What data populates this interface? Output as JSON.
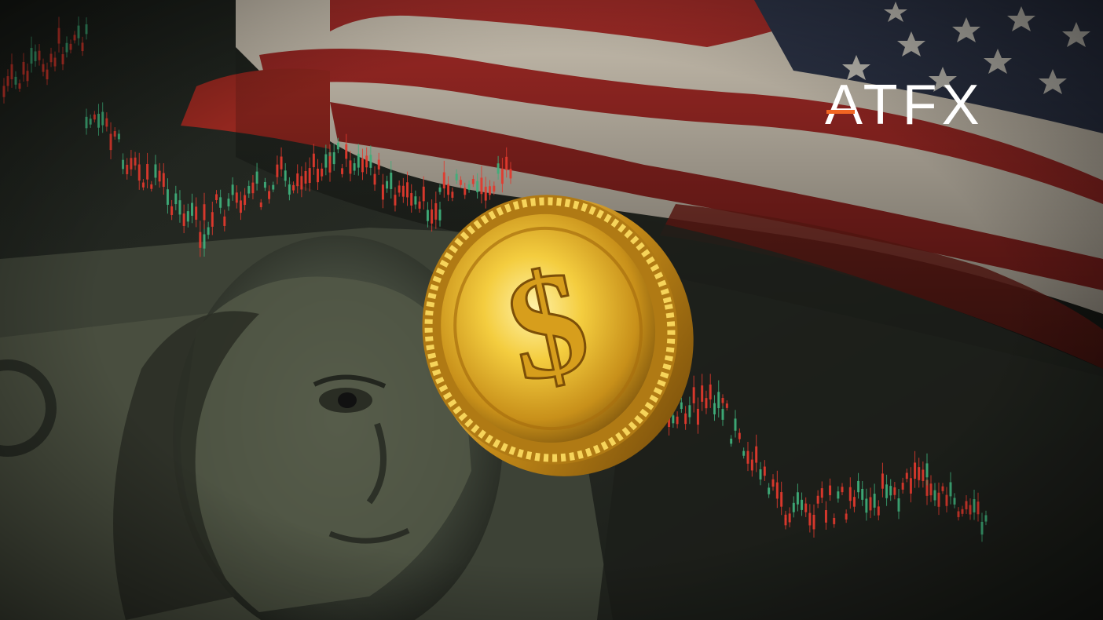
{
  "brand": {
    "logo_text": "ATFX",
    "accent_color": "#f26522",
    "text_color": "#ffffff"
  },
  "scene": {
    "elements": [
      "us-flag",
      "hundred-dollar-banknote",
      "gold-dollar-coin",
      "candlestick-chart-overlay"
    ],
    "coin_symbol": "$",
    "palette": {
      "flag_red": "#9e2a26",
      "flag_white": "#d9d2c4",
      "flag_blue": "#2c3346",
      "banknote_green": "#4a5040",
      "coin_gold": "#e8b92e",
      "candle_red": "#e23a2e",
      "candle_green": "#3fae7a"
    }
  }
}
